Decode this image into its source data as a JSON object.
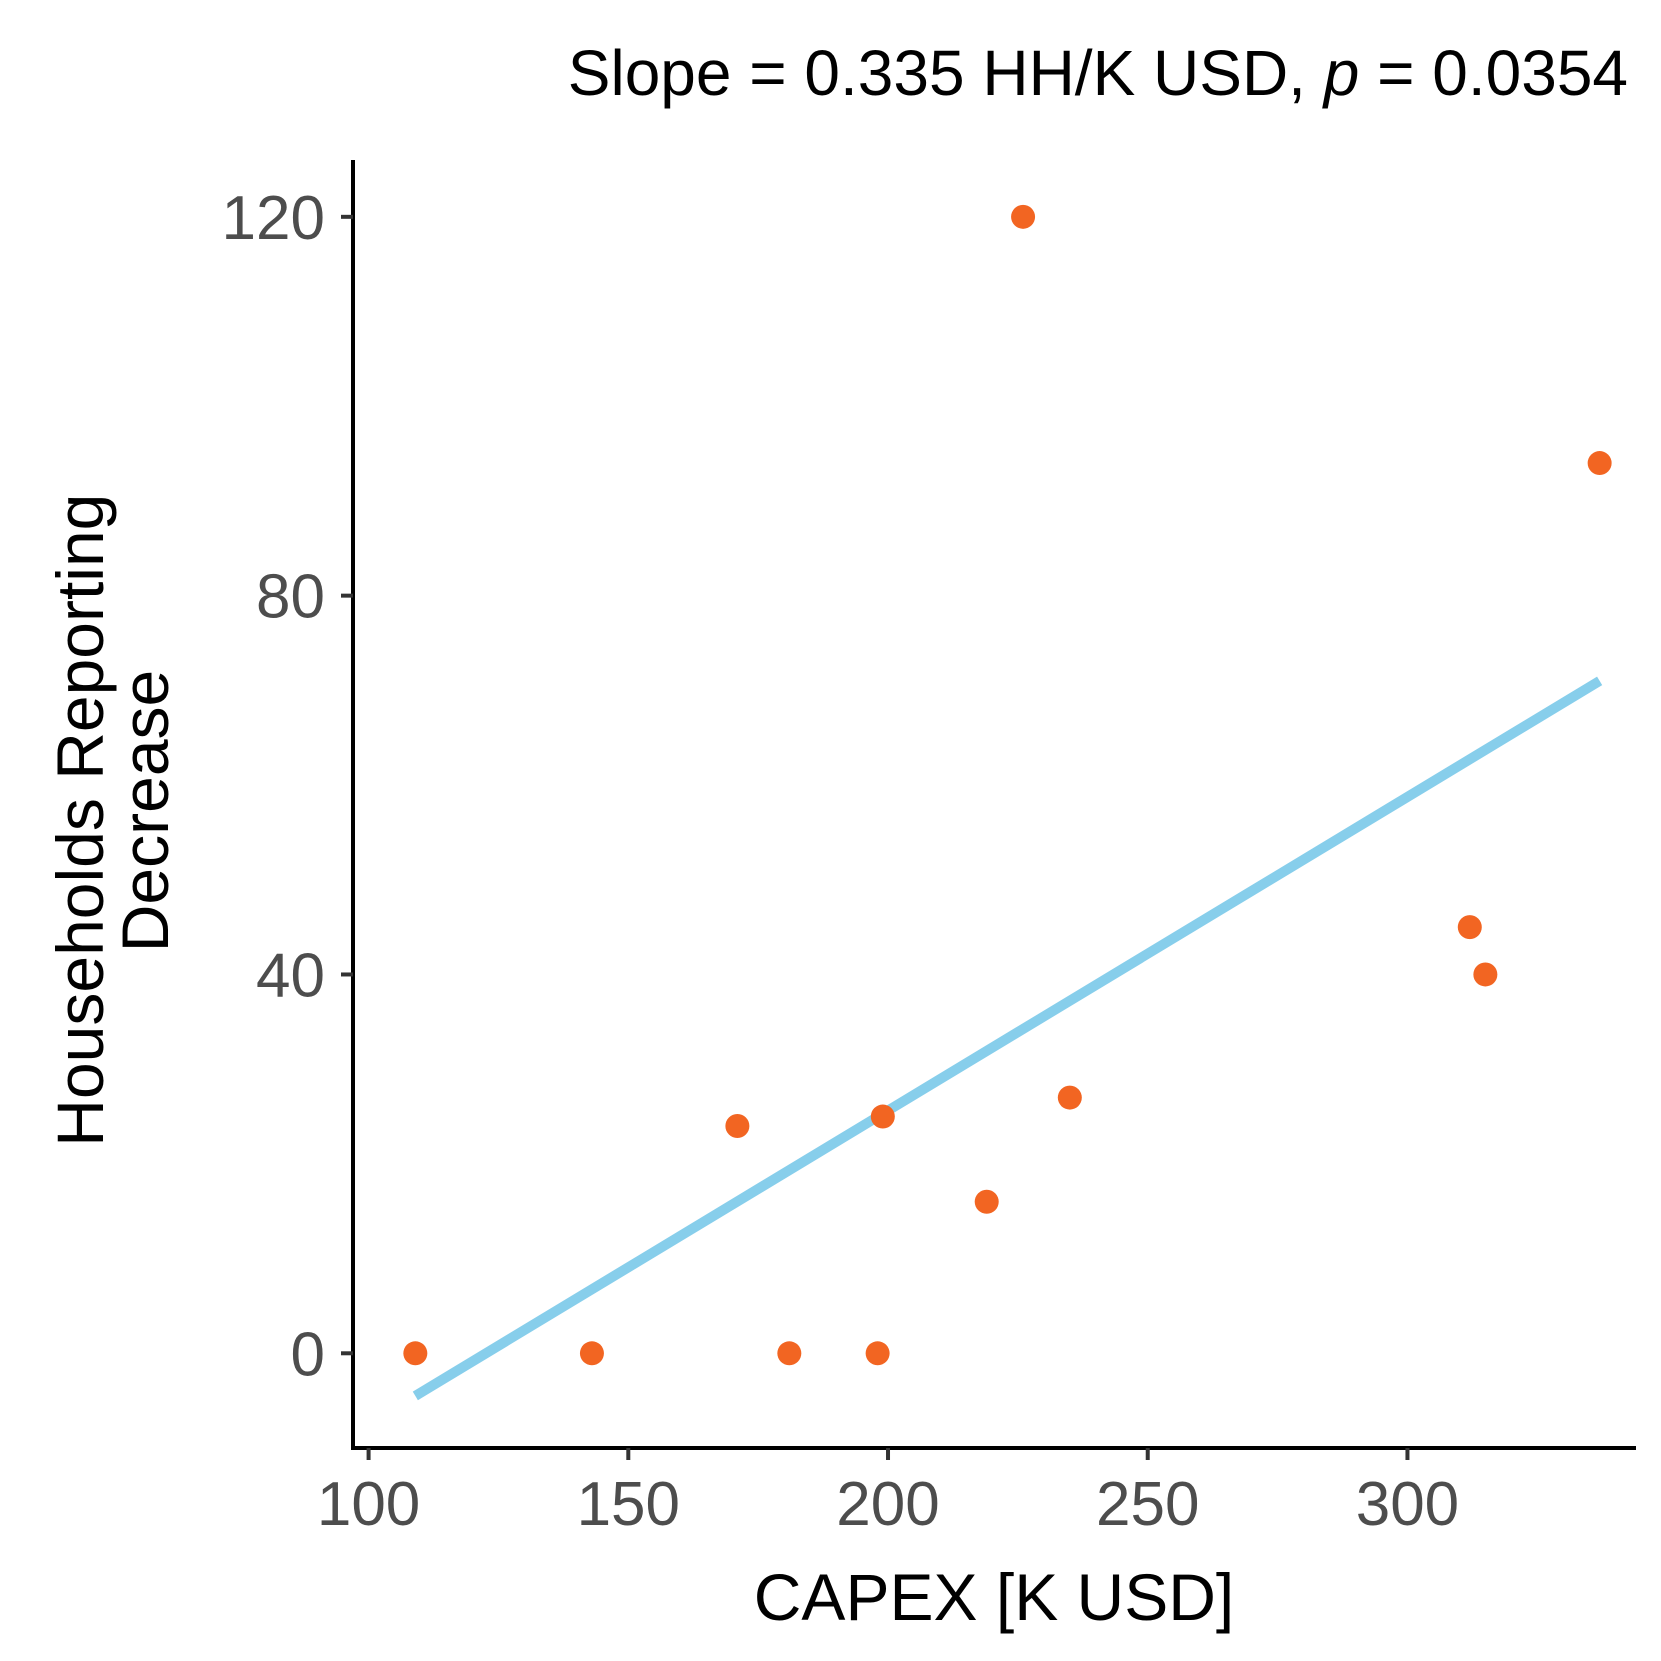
{
  "chart_data": {
    "type": "scatter",
    "title": {
      "slope_label": "Slope",
      "slope_value": "0.335",
      "slope_unit": "HH/K  USD,",
      "p_label": "p",
      "p_value": "0.0354"
    },
    "xlabel": "CAPEX [K USD]",
    "ylabel_lines": [
      "Households Reporting",
      "Decrease"
    ],
    "xlim": [
      97,
      344
    ],
    "ylim": [
      -10,
      126
    ],
    "xticks": [
      100,
      150,
      200,
      250,
      300
    ],
    "xtick_labels": [
      "100",
      "150",
      "200",
      "250",
      "300"
    ],
    "yticks": [
      0,
      40,
      80,
      120
    ],
    "ytick_labels": [
      "0",
      "40",
      "80",
      "120"
    ],
    "grid": false,
    "legend": "none",
    "series": [
      {
        "type": "scatter",
        "color": "#f26522",
        "points": [
          {
            "x": 109,
            "y": 0
          },
          {
            "x": 143,
            "y": 0
          },
          {
            "x": 171,
            "y": 24
          },
          {
            "x": 181,
            "y": 0
          },
          {
            "x": 198,
            "y": 0
          },
          {
            "x": 199,
            "y": 25
          },
          {
            "x": 219,
            "y": 16
          },
          {
            "x": 226,
            "y": 120
          },
          {
            "x": 235,
            "y": 27
          },
          {
            "x": 312,
            "y": 45
          },
          {
            "x": 315,
            "y": 40
          },
          {
            "x": 337,
            "y": 94
          }
        ]
      },
      {
        "type": "line",
        "color": "#87ceeb",
        "points": [
          {
            "x": 109,
            "y": -4.5
          },
          {
            "x": 337,
            "y": 71
          }
        ]
      }
    ]
  }
}
